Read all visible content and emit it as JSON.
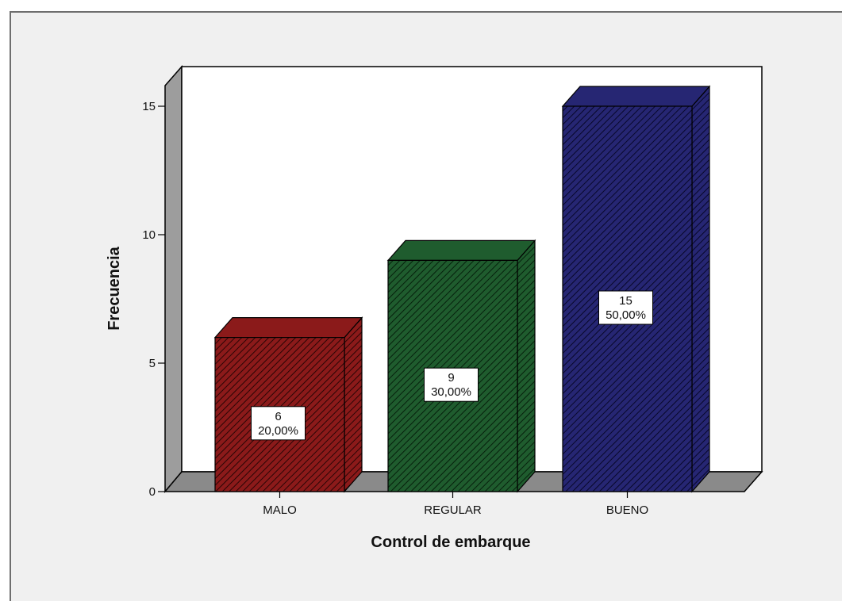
{
  "chart_data": {
    "type": "bar",
    "categories": [
      "MALO",
      "REGULAR",
      "BUENO"
    ],
    "values": [
      6,
      9,
      15
    ],
    "percent_labels": [
      "20,00%",
      "30,00%",
      "50,00%"
    ],
    "colors": [
      "#8b1a1a",
      "#1f5c2e",
      "#262673"
    ],
    "xlabel": "Control de embarque",
    "ylabel": "Frecuencia",
    "ylim": [
      0,
      16.5
    ],
    "yticks": [
      0,
      5,
      10,
      15
    ],
    "grid": false,
    "style": "3d-hatched"
  }
}
